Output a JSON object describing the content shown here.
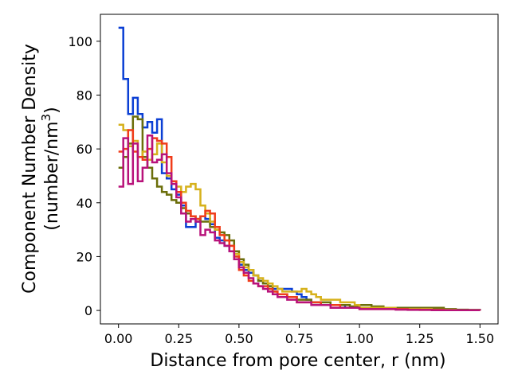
{
  "chart_data": {
    "type": "line",
    "step": true,
    "xlabel": "Distance from pore center, r (nm)",
    "ylabel_line1": "Component Number Density",
    "ylabel_line2_prefix": "(number/nm",
    "ylabel_line2_sup": "3",
    "ylabel_line2_suffix": ")",
    "xlim": [
      -0.075,
      1.575
    ],
    "ylim": [
      -5,
      110
    ],
    "xticks": [
      0.0,
      0.25,
      0.5,
      0.75,
      1.0,
      1.25,
      1.5
    ],
    "xtick_labels": [
      "0.00",
      "0.25",
      "0.50",
      "0.75",
      "1.00",
      "1.25",
      "1.50"
    ],
    "yticks": [
      0,
      20,
      40,
      60,
      80,
      100
    ],
    "ytick_labels": [
      "0",
      "20",
      "40",
      "60",
      "80",
      "100"
    ],
    "grid": false,
    "x": [
      0.0,
      0.02,
      0.04,
      0.06,
      0.08,
      0.1,
      0.12,
      0.14,
      0.16,
      0.18,
      0.2,
      0.22,
      0.24,
      0.26,
      0.28,
      0.3,
      0.32,
      0.34,
      0.36,
      0.38,
      0.4,
      0.42,
      0.44,
      0.46,
      0.48,
      0.5,
      0.52,
      0.54,
      0.56,
      0.58,
      0.6,
      0.62,
      0.64,
      0.66,
      0.68,
      0.7,
      0.72,
      0.74,
      0.76,
      0.78,
      0.8,
      0.82,
      0.84,
      0.86,
      0.88,
      0.9,
      0.92,
      0.94,
      0.96,
      0.98,
      1.0,
      1.05,
      1.1,
      1.15,
      1.2,
      1.25,
      1.3,
      1.35,
      1.4,
      1.45,
      1.5
    ],
    "series": [
      {
        "color": "#0b3fd4",
        "values": [
          105,
          86,
          73,
          79,
          73,
          68,
          70,
          66,
          71,
          51,
          49,
          45,
          43,
          39,
          31,
          31,
          33,
          35,
          34,
          32,
          27,
          26,
          24,
          22,
          20,
          17,
          15,
          14,
          13,
          11,
          10,
          9,
          8,
          8,
          8,
          8,
          7,
          6,
          5,
          4,
          3,
          3,
          2,
          2,
          2,
          2,
          2,
          1,
          1,
          1,
          1,
          1,
          1,
          0.5,
          0.5,
          0.5,
          0.3,
          0.2,
          0.1,
          0.1,
          0
        ]
      },
      {
        "color": "#6b6e0a",
        "values": [
          53,
          57,
          62,
          72,
          71,
          57,
          53,
          49,
          46,
          44,
          43,
          41,
          40,
          38,
          36,
          35,
          34,
          33,
          33,
          31,
          30,
          29,
          28,
          26,
          22,
          19,
          17,
          15,
          13,
          11,
          10,
          9,
          7,
          6,
          6,
          5,
          5,
          4,
          4,
          4,
          3,
          3,
          3,
          3,
          2,
          2,
          2,
          2,
          1.5,
          1.5,
          2,
          1.5,
          1,
          1,
          1,
          1,
          1,
          0.5,
          0.3,
          0.2,
          0
        ]
      },
      {
        "color": "#d6b11b",
        "values": [
          69,
          67,
          61,
          63,
          57,
          59,
          56,
          58,
          62,
          55,
          50,
          48,
          46,
          44,
          46,
          47,
          45,
          39,
          36,
          33,
          30,
          28,
          26,
          24,
          21,
          18,
          16,
          15,
          13,
          12,
          11,
          10,
          9,
          8,
          7,
          7,
          7,
          7,
          8,
          7,
          6,
          5,
          4,
          4,
          4,
          4,
          3,
          3,
          3,
          2,
          1,
          1,
          1,
          0.5,
          0.5,
          0.5,
          0.3,
          0.2,
          0.1,
          0.1,
          0
        ]
      },
      {
        "color": "#f03c1a",
        "values": [
          59,
          60,
          67,
          59,
          57,
          56,
          60,
          64,
          63,
          62,
          57,
          48,
          44,
          40,
          37,
          35,
          34,
          35,
          37,
          36,
          31,
          28,
          26,
          24,
          20,
          15,
          13,
          11,
          10,
          9,
          9,
          8,
          7,
          6,
          6,
          5,
          5,
          3,
          3,
          3,
          3,
          3,
          2,
          2,
          2,
          2,
          1,
          1,
          1,
          1,
          0.5,
          0.5,
          0.5,
          0.5,
          0.3,
          0.2,
          0.2,
          0.1,
          0.1,
          0.1,
          0
        ]
      },
      {
        "color": "#b8127a",
        "values": [
          46,
          64,
          47,
          62,
          48,
          53,
          65,
          55,
          56,
          58,
          51,
          47,
          42,
          36,
          33,
          34,
          33,
          28,
          30,
          29,
          26,
          25,
          24,
          22,
          19,
          16,
          14,
          12,
          10,
          9,
          8,
          7,
          6,
          5,
          5,
          4,
          4,
          3,
          3,
          3,
          2,
          2,
          2,
          2,
          1,
          1,
          1,
          1,
          1,
          1,
          0.5,
          0.5,
          0.5,
          0.3,
          0.2,
          0.2,
          0.1,
          0.1,
          0.1,
          0.1,
          0
        ]
      }
    ]
  }
}
